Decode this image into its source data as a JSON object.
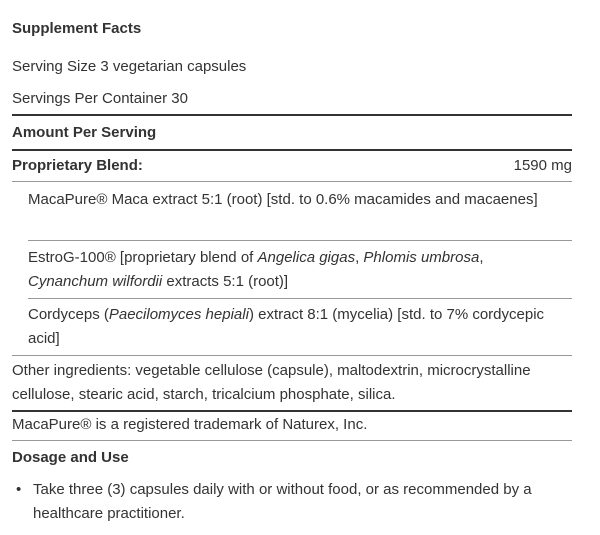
{
  "title": "Supplement Facts",
  "serving_size": "Serving Size 3 vegetarian capsules",
  "servings_per_container": "Servings Per Container 30",
  "amount_header": "Amount Per Serving",
  "blend": {
    "name": "Proprietary Blend:",
    "amount": "1590 mg",
    "ingredients": [
      {
        "parts": [
          {
            "text": "MacaPure® Maca extract 5:1 (root) [std. to 0.6% macamides and macaenes]"
          }
        ]
      },
      {
        "parts": [
          {
            "text": "EstroG-100® [proprietary blend of "
          },
          {
            "text": "Angelica gigas",
            "italic": true
          },
          {
            "text": ", "
          },
          {
            "text": "Phlomis umbrosa",
            "italic": true
          },
          {
            "text": ", "
          },
          {
            "text": "Cynanchum wilfordii",
            "italic": true
          },
          {
            "text": " extracts 5:1 (root)]"
          }
        ]
      },
      {
        "parts": [
          {
            "text": "Cordyceps ("
          },
          {
            "text": "Paecilomyces hepiali",
            "italic": true
          },
          {
            "text": ") extract 8:1 (mycelia) [std. to 7% cordycepic acid]"
          }
        ]
      }
    ]
  },
  "other_ingredients": "Other ingredients: vegetable cellulose (capsule), maltodextrin, microcrystalline cellulose, stearic acid, starch, tricalcium phosphate, silica.",
  "trademark": "MacaPure® is a registered trademark of Naturex, Inc.",
  "dosage": {
    "title": "Dosage and Use",
    "items": [
      "Take three (3) capsules daily with or without food, or as recommended by a healthcare practitioner."
    ]
  }
}
